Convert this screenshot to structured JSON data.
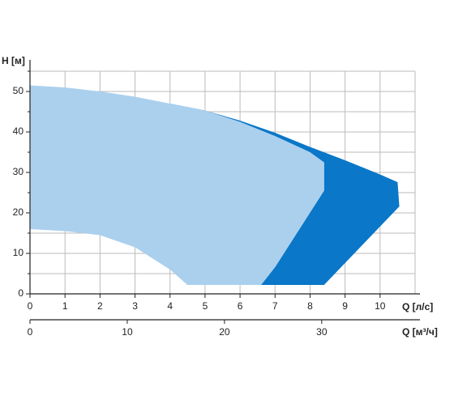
{
  "chart_data": {
    "type": "area",
    "ylabel": "H [м]",
    "xlabel": "Q [л/с]",
    "x2label": "Q [м³/ч]",
    "xlim": [
      0,
      11
    ],
    "xticks": [
      0,
      1,
      2,
      3,
      4,
      5,
      6,
      7,
      8,
      9,
      10
    ],
    "ylim": [
      0,
      55
    ],
    "yticks": [
      0,
      10,
      20,
      30,
      40,
      50
    ],
    "yminor": [
      5,
      15,
      25,
      35,
      45,
      55
    ],
    "x2lim": [
      0,
      39.6
    ],
    "x2ticks": [
      0,
      10,
      20,
      30
    ],
    "grid": true,
    "series": [
      {
        "color": "#0a77c8",
        "x": [
          4,
          5,
          6,
          7,
          8,
          9,
          10,
          10.5,
          10.55,
          8.4,
          6.6,
          7,
          8.4,
          8.4
        ],
        "y": [
          47,
          45.3,
          42.8,
          39.8,
          36.3,
          33,
          29.5,
          27.6,
          21.6,
          2.2,
          2.2,
          6.6,
          25.5,
          32.5
        ]
      },
      {
        "color": "#abd0ee",
        "x": [
          0,
          1,
          2,
          3,
          4,
          5,
          6,
          7,
          8,
          8.4,
          8.4,
          7,
          6.6,
          4.5,
          4,
          3,
          2,
          1,
          0
        ],
        "y": [
          51.5,
          51,
          50,
          48.7,
          47,
          45.3,
          42.5,
          39,
          35,
          32.5,
          25.5,
          6.6,
          2.2,
          2.2,
          6,
          11.5,
          14.5,
          15.5,
          16
        ]
      }
    ]
  }
}
